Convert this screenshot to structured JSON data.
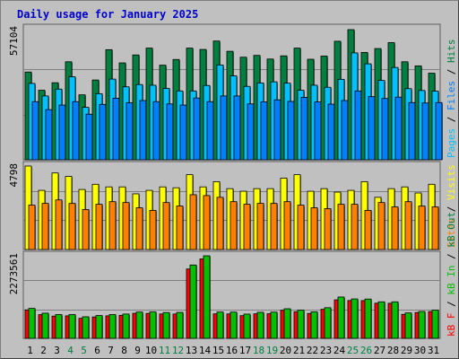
{
  "title": "Daily usage for January 2025",
  "colors": {
    "hits": "#008040",
    "files": "#0080ff",
    "pages": "#00c0ff",
    "visits": "#ffff00",
    "sites": "#ff8000",
    "kb_in": "#00c000",
    "kb_out": "#008040",
    "kb_f": "#ff0000",
    "plot_bg": "#c0c0c0",
    "grid": "#808080",
    "title": "#0000cc",
    "weekend": "#008040"
  },
  "panels": {
    "hits": {
      "max_label": "57104"
    },
    "visits": {
      "max_label": "4798"
    },
    "kbytes": {
      "max_label": "2273561"
    }
  },
  "chart_data": [
    {
      "type": "bar",
      "categories": [
        "1",
        "2",
        "3",
        "4",
        "5",
        "6",
        "7",
        "8",
        "9",
        "10",
        "11",
        "12",
        "13",
        "14",
        "15",
        "16",
        "17",
        "18",
        "19",
        "20",
        "21",
        "22",
        "23",
        "24",
        "25",
        "26",
        "27",
        "28",
        "29",
        "30",
        "31"
      ],
      "weekend_days": [
        "4",
        "5",
        "11",
        "12",
        "18",
        "19",
        "25",
        "26"
      ],
      "ylim": [
        0,
        57104
      ],
      "series": [
        {
          "name": "Hits",
          "values": [
            38500,
            30500,
            33800,
            43000,
            28500,
            35000,
            48300,
            42500,
            46000,
            49000,
            41500,
            44000,
            49000,
            48400,
            52100,
            47600,
            45000,
            45800,
            44200,
            45600,
            49000,
            44100,
            45500,
            52000,
            57104,
            47100,
            48800,
            51400,
            43000,
            41200,
            38000
          ]
        },
        {
          "name": "Files",
          "values": [
            25500,
            22000,
            24000,
            25500,
            20000,
            24300,
            27000,
            25000,
            26000,
            25500,
            24500,
            24000,
            27100,
            25500,
            28000,
            28000,
            24500,
            25400,
            26300,
            25600,
            27400,
            25400,
            24400,
            26000,
            30200,
            27700,
            26900,
            27500,
            25100,
            24900,
            25100
          ]
        },
        {
          "name": "Pages",
          "values": [
            33500,
            28000,
            31000,
            36400,
            23000,
            29000,
            35400,
            32000,
            33000,
            32700,
            31300,
            30200,
            30200,
            32600,
            41600,
            36800,
            32200,
            33700,
            34200,
            33600,
            30500,
            32700,
            31800,
            35300,
            46900,
            42100,
            34800,
            40500,
            31200,
            30400,
            30100
          ]
        }
      ]
    },
    {
      "type": "bar",
      "categories": [
        "1",
        "2",
        "3",
        "4",
        "5",
        "6",
        "7",
        "8",
        "9",
        "10",
        "11",
        "12",
        "13",
        "14",
        "15",
        "16",
        "17",
        "18",
        "19",
        "20",
        "21",
        "22",
        "23",
        "24",
        "25",
        "26",
        "27",
        "28",
        "29",
        "30",
        "31"
      ],
      "ylim": [
        0,
        4798
      ],
      "series": [
        {
          "name": "Visits",
          "values": [
            4798,
            3400,
            4400,
            4200,
            3450,
            3750,
            3600,
            3600,
            3200,
            3400,
            3600,
            3550,
            4300,
            3600,
            3900,
            3500,
            3350,
            3500,
            3500,
            4100,
            4300,
            3350,
            3500,
            3300,
            3400,
            3900,
            3000,
            3500,
            3600,
            3250,
            3750
          ]
        },
        {
          "name": "Sites",
          "values": [
            2550,
            2650,
            2850,
            2650,
            2300,
            2600,
            2750,
            2700,
            2400,
            2250,
            2700,
            2500,
            3150,
            3100,
            3000,
            2750,
            2600,
            2650,
            2650,
            2750,
            2550,
            2400,
            2350,
            2600,
            2600,
            2250,
            2700,
            2450,
            2750,
            2500,
            2450
          ]
        }
      ]
    },
    {
      "type": "bar",
      "categories": [
        "1",
        "2",
        "3",
        "4",
        "5",
        "6",
        "7",
        "8",
        "9",
        "10",
        "11",
        "12",
        "13",
        "14",
        "15",
        "16",
        "17",
        "18",
        "19",
        "20",
        "21",
        "22",
        "23",
        "24",
        "25",
        "26",
        "27",
        "28",
        "29",
        "30",
        "31"
      ],
      "ylim": [
        0,
        2273561
      ],
      "series": [
        {
          "name": "KB F",
          "values": [
            785000,
            652000,
            613000,
            620000,
            552000,
            589000,
            620000,
            634000,
            690000,
            687000,
            671000,
            671000,
            1911000,
            2187000,
            675000,
            673000,
            625000,
            676000,
            678000,
            774000,
            734000,
            687000,
            800000,
            1060000,
            1042000,
            1040000,
            968000,
            966000,
            661000,
            711000,
            737000
          ]
        },
        {
          "name": "KB In",
          "values": [
            825000,
            693000,
            655000,
            655000,
            594000,
            628000,
            655000,
            670000,
            725000,
            728000,
            711000,
            715000,
            2020000,
            2273561,
            725000,
            723000,
            668000,
            718000,
            723000,
            815000,
            775000,
            731000,
            844000,
            1138000,
            1086000,
            1082000,
            1006000,
            1006000,
            700000,
            740000,
            780000
          ]
        },
        {
          "name": "KB Out",
          "values": [
            0,
            0,
            0,
            0,
            0,
            0,
            0,
            0,
            0,
            0,
            0,
            0,
            0,
            0,
            0,
            0,
            0,
            0,
            0,
            0,
            0,
            0,
            0,
            0,
            0,
            0,
            0,
            0,
            0,
            0,
            0
          ]
        }
      ]
    }
  ],
  "legends": {
    "hits_panel": [
      "Pages",
      " / ",
      "Files",
      " / ",
      "Hits"
    ],
    "visits_panel": [
      "Sites",
      " / ",
      "Visits"
    ],
    "kbytes_panel": [
      "kB F",
      " / ",
      "kB In",
      " / ",
      "kB Out"
    ]
  }
}
